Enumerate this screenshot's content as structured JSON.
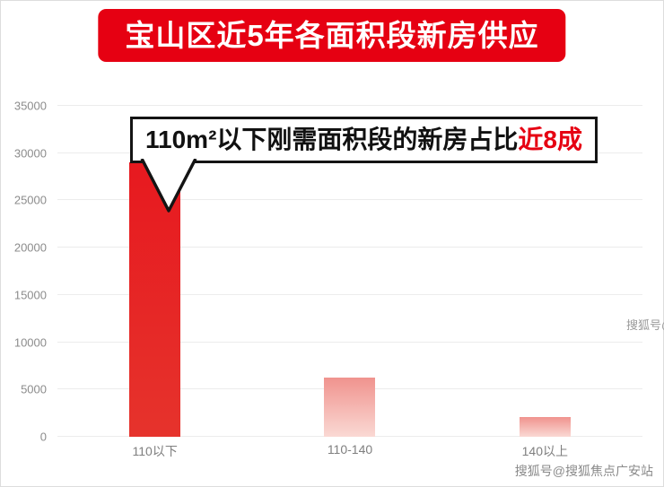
{
  "title": "宝山区近5年各面积段新房供应",
  "annotation": {
    "text": "110m²以下刚需面积段的新房占比",
    "highlight": "近8成"
  },
  "watermark": {
    "text": "搜狐号@搜狐焦点广安站"
  },
  "colors": {
    "accent_red": "#e60012",
    "callout_border": "#141414",
    "grid": "#ececec",
    "axis_text": "#8c8c8c"
  },
  "chart_data": {
    "type": "bar",
    "title": "宝山区近5年各面积段新房供应",
    "categories": [
      "110以下",
      "110-140",
      "140以上"
    ],
    "values": [
      29000,
      6300,
      2100
    ],
    "ylim": [
      0,
      35000
    ],
    "yticks": [
      0,
      5000,
      10000,
      15000,
      20000,
      25000,
      30000,
      35000
    ],
    "bar_colors": [
      [
        "#e7191f",
        "#e6332c"
      ],
      [
        "#f0938e",
        "#fad9d4"
      ],
      [
        "#f0938e",
        "#fad9d4"
      ]
    ],
    "grid": true,
    "legend": false,
    "annotation": "110m²以下刚需面积段的新房占比近8成"
  }
}
